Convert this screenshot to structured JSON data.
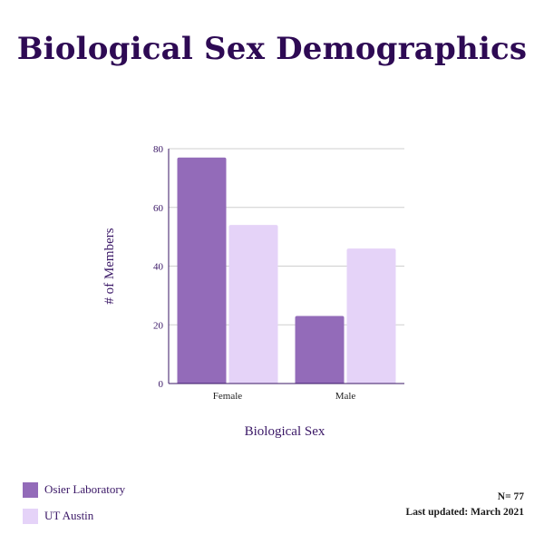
{
  "title": "Biological Sex Demographics",
  "footnote": {
    "n_label": "N= 77",
    "updated_label": "Last updated: March 2021"
  },
  "colors": {
    "title": "#2e0a54",
    "series_0": "#936bb9",
    "series_1": "#e5d3f8",
    "axis_text": "#3a1766",
    "grid": "#cfcfcf"
  },
  "chart_data": {
    "type": "bar",
    "categories": [
      "Female",
      "Male"
    ],
    "series": [
      {
        "name": "Osier Laboratory",
        "values": [
          77,
          23
        ]
      },
      {
        "name": "UT Austin",
        "values": [
          54,
          46
        ]
      }
    ],
    "xlabel": "Biological Sex",
    "ylabel": "# of Members",
    "ylim": [
      0,
      80
    ],
    "yticks": [
      0,
      20,
      40,
      60,
      80
    ],
    "grid": true,
    "legend_position": "bottom-left"
  }
}
